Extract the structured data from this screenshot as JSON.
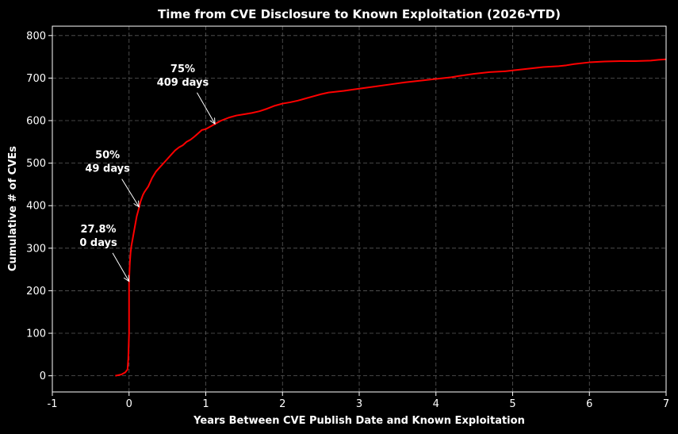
{
  "chart_data": {
    "type": "line",
    "title": "Time from CVE Disclosure to Known Exploitation (2026-YTD)",
    "xlabel": "Years Between CVE Publish Date and Known Exploitation",
    "ylabel": "Cumulative # of CVEs",
    "xlim": [
      -1,
      7
    ],
    "ylim": [
      -38,
      822
    ],
    "xticks": [
      -1,
      0,
      1,
      2,
      3,
      4,
      5,
      6,
      7
    ],
    "yticks": [
      0,
      100,
      200,
      300,
      400,
      500,
      600,
      700,
      800
    ],
    "grid": true,
    "series": [
      {
        "color": "#ff0000",
        "x": [
          -0.18,
          -0.1,
          -0.05,
          -0.02,
          -0.01,
          0.0,
          0.0,
          0.0,
          0.0,
          0.01,
          0.02,
          0.03,
          0.05,
          0.07,
          0.1,
          0.13,
          0.15,
          0.18,
          0.2,
          0.25,
          0.3,
          0.35,
          0.4,
          0.45,
          0.5,
          0.55,
          0.6,
          0.65,
          0.7,
          0.75,
          0.8,
          0.85,
          0.9,
          0.95,
          1.0,
          1.05,
          1.12,
          1.2,
          1.3,
          1.4,
          1.5,
          1.6,
          1.7,
          1.8,
          1.9,
          2.0,
          2.1,
          2.2,
          2.3,
          2.4,
          2.5,
          2.6,
          2.8,
          3.0,
          3.2,
          3.4,
          3.6,
          3.8,
          4.0,
          4.2,
          4.3,
          4.5,
          4.7,
          4.9,
          5.0,
          5.2,
          5.4,
          5.6,
          5.7,
          5.8,
          6.0,
          6.2,
          6.4,
          6.6,
          6.8,
          6.9,
          7.0
        ],
        "y": [
          0,
          3,
          8,
          15,
          40,
          100,
          150,
          200,
          222,
          265,
          290,
          305,
          325,
          345,
          375,
          395,
          410,
          425,
          432,
          445,
          465,
          480,
          490,
          500,
          510,
          520,
          530,
          537,
          542,
          550,
          555,
          562,
          570,
          578,
          580,
          585,
          592,
          600,
          607,
          612,
          615,
          618,
          622,
          628,
          635,
          640,
          643,
          647,
          652,
          657,
          662,
          666,
          670,
          675,
          680,
          685,
          690,
          694,
          698,
          702,
          705,
          710,
          714,
          716,
          718,
          722,
          726,
          728,
          730,
          733,
          737,
          739,
          740,
          740,
          741,
          743,
          744
        ]
      }
    ],
    "annotations": [
      {
        "line1": "27.8%",
        "line2": "0 days",
        "text_x": -0.4,
        "text_y": 313,
        "point_x": 0.0,
        "point_y": 222
      },
      {
        "line1": "50%",
        "line2": "49 days",
        "text_x": -0.28,
        "text_y": 487,
        "point_x": 0.13,
        "point_y": 397
      },
      {
        "line1": "75%",
        "line2": "409 days",
        "text_x": 0.7,
        "text_y": 690,
        "point_x": 1.12,
        "point_y": 592
      }
    ]
  }
}
